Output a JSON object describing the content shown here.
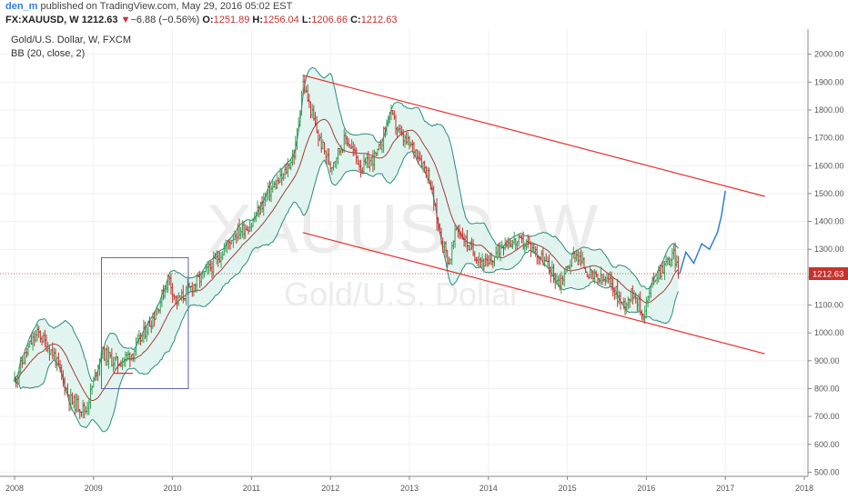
{
  "header": {
    "user": "den_m",
    "published_text": "published on TradingView.com, May 29, 2016 05:02 EST",
    "symbol": "FX:XAUUSD, W",
    "last": "1212.63",
    "change_arrow": "▼",
    "change": "−6.88 (−0.56%)",
    "o_label": "O:",
    "o_value": "1251.89",
    "h_label": "H:",
    "h_value": "1256.04",
    "l_label": "L:",
    "l_value": "1206.66",
    "c_label": "C:",
    "c_value": "1212.63"
  },
  "legend": {
    "title": "Gold/U.S. Dollar, W, FXCM",
    "indicator": "BB (20, close, 2)"
  },
  "watermark": {
    "ticker": "XAUUSD, W",
    "name": "Gold/U.S. Dollar"
  },
  "colors": {
    "candle_up": "#3a9d55",
    "candle_down": "#c6322d",
    "bb_fill": "#dff3ee",
    "bb_line": "#2a8c7c",
    "bb_basis": "#a0403a",
    "channel": "#e8302a",
    "projection": "#2f7ed8",
    "box": "#5566aa",
    "price_tag": "#c6322d"
  },
  "chart_data": {
    "type": "candlestick",
    "title": "Gold/U.S. Dollar, W, FXCM",
    "y_axis_ticks": [
      500,
      600,
      700,
      800,
      900,
      1000,
      1100,
      1200,
      1300,
      1400,
      1500,
      1600,
      1700,
      1800,
      1900,
      2000
    ],
    "x_axis_ticks": [
      "2008",
      "2009",
      "2010",
      "2011",
      "2012",
      "2013",
      "2014",
      "2015",
      "2016",
      "2017",
      "2018"
    ],
    "last_price": 1212.63,
    "price_path": [
      [
        2008.0,
        830
      ],
      [
        2008.2,
        960
      ],
      [
        2008.3,
        1000
      ],
      [
        2008.5,
        920
      ],
      [
        2008.7,
        760
      ],
      [
        2008.9,
        720
      ],
      [
        2009.1,
        930
      ],
      [
        2009.3,
        890
      ],
      [
        2009.5,
        930
      ],
      [
        2009.8,
        1080
      ],
      [
        2009.95,
        1200
      ],
      [
        2010.05,
        1110
      ],
      [
        2010.3,
        1180
      ],
      [
        2010.5,
        1240
      ],
      [
        2010.8,
        1360
      ],
      [
        2011.0,
        1390
      ],
      [
        2011.2,
        1500
      ],
      [
        2011.4,
        1560
      ],
      [
        2011.55,
        1650
      ],
      [
        2011.65,
        1900
      ],
      [
        2011.85,
        1700
      ],
      [
        2012.0,
        1600
      ],
      [
        2012.2,
        1700
      ],
      [
        2012.4,
        1590
      ],
      [
        2012.6,
        1640
      ],
      [
        2012.75,
        1790
      ],
      [
        2012.9,
        1700
      ],
      [
        2013.1,
        1650
      ],
      [
        2013.25,
        1560
      ],
      [
        2013.35,
        1400
      ],
      [
        2013.5,
        1250
      ],
      [
        2013.6,
        1380
      ],
      [
        2013.8,
        1290
      ],
      [
        2014.0,
        1240
      ],
      [
        2014.2,
        1330
      ],
      [
        2014.5,
        1320
      ],
      [
        2014.7,
        1260
      ],
      [
        2014.9,
        1180
      ],
      [
        2015.1,
        1290
      ],
      [
        2015.3,
        1200
      ],
      [
        2015.55,
        1180
      ],
      [
        2015.7,
        1100
      ],
      [
        2015.85,
        1150
      ],
      [
        2015.95,
        1060
      ],
      [
        2016.1,
        1200
      ],
      [
        2016.25,
        1250
      ],
      [
        2016.35,
        1280
      ],
      [
        2016.42,
        1212
      ]
    ],
    "bollinger_bands": {
      "length": 20,
      "source": "close",
      "stddev": 2
    },
    "channel_lines": [
      {
        "from": [
          2011.65,
          1925
        ],
        "to": [
          2017.5,
          1490
        ]
      },
      {
        "from": [
          2011.65,
          1360
        ],
        "to": [
          2017.5,
          925
        ]
      }
    ],
    "projection_path": [
      [
        2016.42,
        1212
      ],
      [
        2016.5,
        1290
      ],
      [
        2016.6,
        1250
      ],
      [
        2016.7,
        1320
      ],
      [
        2016.8,
        1300
      ],
      [
        2016.9,
        1360
      ],
      [
        2016.95,
        1420
      ],
      [
        2017.0,
        1510
      ]
    ],
    "highlight_box": {
      "x0": 2009.1,
      "x1": 2010.2,
      "y0": 800,
      "y1": 1270
    },
    "support_line": {
      "x0": 2009.25,
      "x1": 2009.5,
      "y": 855
    }
  }
}
